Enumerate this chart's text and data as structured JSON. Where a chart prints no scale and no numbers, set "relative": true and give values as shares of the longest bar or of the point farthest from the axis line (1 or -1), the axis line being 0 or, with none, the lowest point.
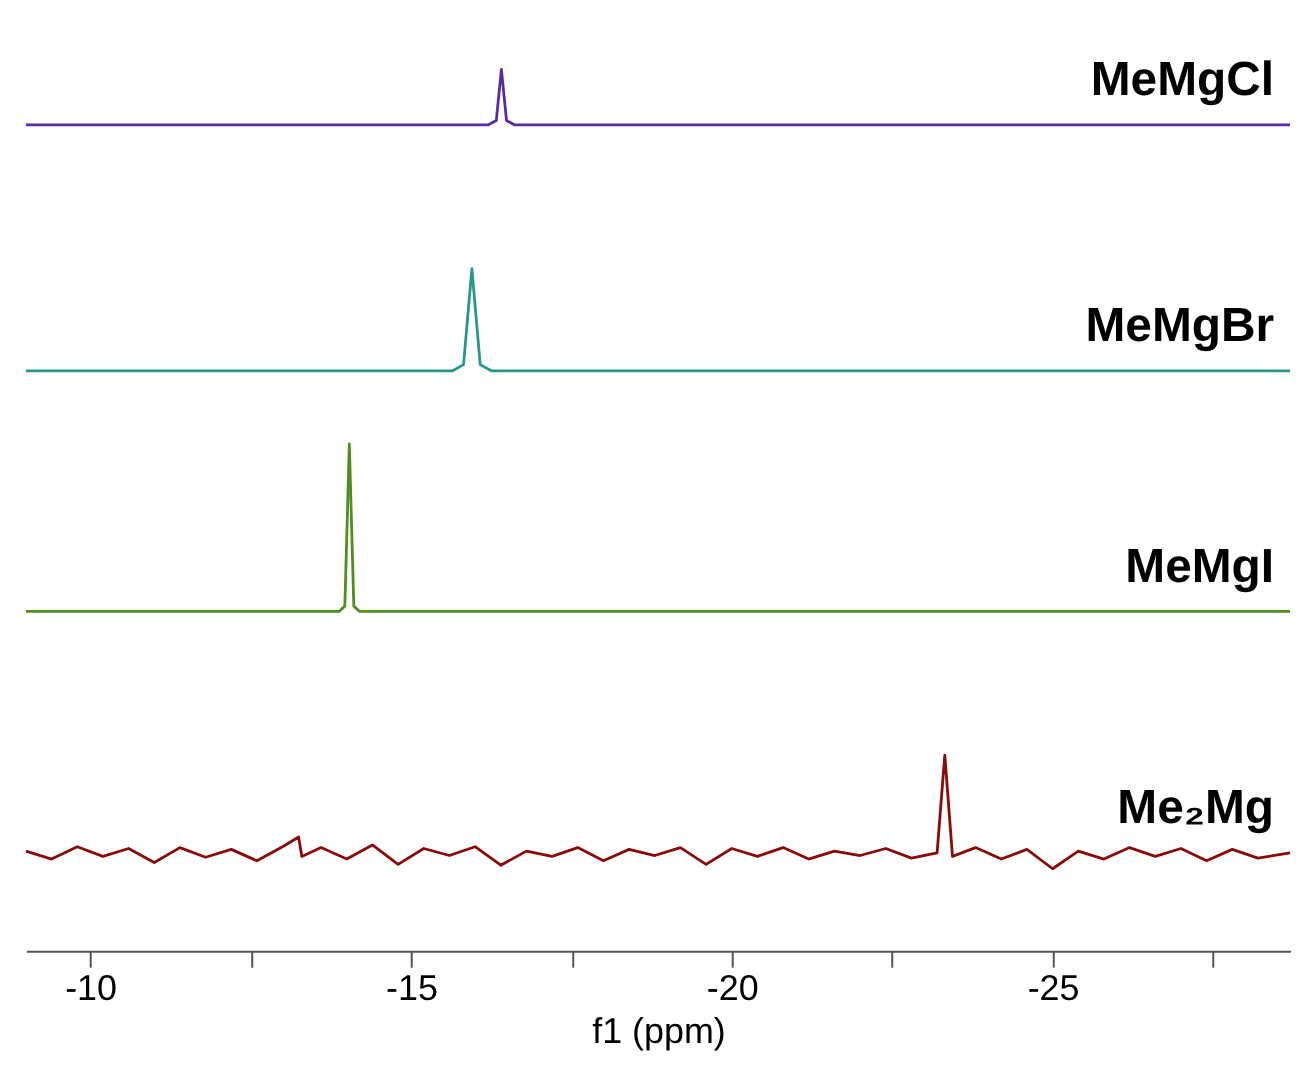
{
  "chart_data": {
    "type": "line",
    "relative": true,
    "grid": false,
    "legend": false,
    "xlim": [
      -9,
      -28.7
    ],
    "xlabel": "f1 (ppm)",
    "xticks": [
      -10,
      {
        "value": -12.5,
        "label": null
      },
      -15,
      {
        "value": -17.5,
        "label": null
      },
      -20,
      {
        "value": -22.5,
        "label": null
      },
      -25,
      {
        "value": -27.5,
        "label": null
      }
    ],
    "series": [
      {
        "name": "MeMgCl",
        "color": "#5b2ca0",
        "x": [
          -9,
          -16.2,
          -16.33,
          -16.41,
          -16.49,
          -16.62,
          -28.7
        ],
        "values": [
          0.937,
          0.937,
          0.942,
          1,
          0.942,
          0.937,
          0.937
        ]
      },
      {
        "name": "MeMgBr",
        "color": "#2a968c",
        "x": [
          -9,
          -15.65,
          -15.82,
          -15.95,
          -16.08,
          -16.25,
          -28.7
        ],
        "values": [
          0.658,
          0.658,
          0.665,
          0.774,
          0.665,
          0.658,
          0.658
        ]
      },
      {
        "name": "MeMgI",
        "color": "#4e8f1e",
        "x": [
          -9,
          -13.88,
          -13.97,
          -14.04,
          -14.11,
          -14.2,
          -28.7
        ],
        "values": [
          0.385,
          0.385,
          0.391,
          0.575,
          0.391,
          0.385,
          0.385
        ]
      },
      {
        "name": "Me₂Mg",
        "color": "#8b0a0a",
        "x": [
          -9,
          -9.4,
          -9.8,
          -10.2,
          -10.6,
          -11.0,
          -11.4,
          -11.8,
          -12.2,
          -12.6,
          -13.0,
          -13.25,
          -13.3,
          -13.6,
          -14.0,
          -14.4,
          -14.8,
          -15.2,
          -15.6,
          -16.0,
          -16.4,
          -16.8,
          -17.2,
          -17.6,
          -18.0,
          -18.4,
          -18.8,
          -19.2,
          -19.6,
          -20.0,
          -20.4,
          -20.8,
          -21.2,
          -21.6,
          -22.0,
          -22.4,
          -22.8,
          -23.2,
          -23.32,
          -23.44,
          -23.8,
          -24.2,
          -24.6,
          -25.0,
          -25.4,
          -25.8,
          -26.2,
          -26.6,
          -27.0,
          -27.4,
          -27.8,
          -28.2,
          -28.7
        ],
        "values": [
          0.113,
          0.104,
          0.118,
          0.107,
          0.116,
          0.1,
          0.117,
          0.106,
          0.115,
          0.102,
          0.118,
          0.129,
          0.107,
          0.117,
          0.104,
          0.12,
          0.098,
          0.116,
          0.108,
          0.118,
          0.097,
          0.113,
          0.107,
          0.117,
          0.102,
          0.115,
          0.108,
          0.117,
          0.098,
          0.116,
          0.107,
          0.117,
          0.104,
          0.113,
          0.108,
          0.116,
          0.105,
          0.111,
          0.222,
          0.107,
          0.117,
          0.104,
          0.115,
          0.093,
          0.113,
          0.104,
          0.117,
          0.107,
          0.116,
          0.102,
          0.115,
          0.105,
          0.111
        ]
      }
    ]
  }
}
